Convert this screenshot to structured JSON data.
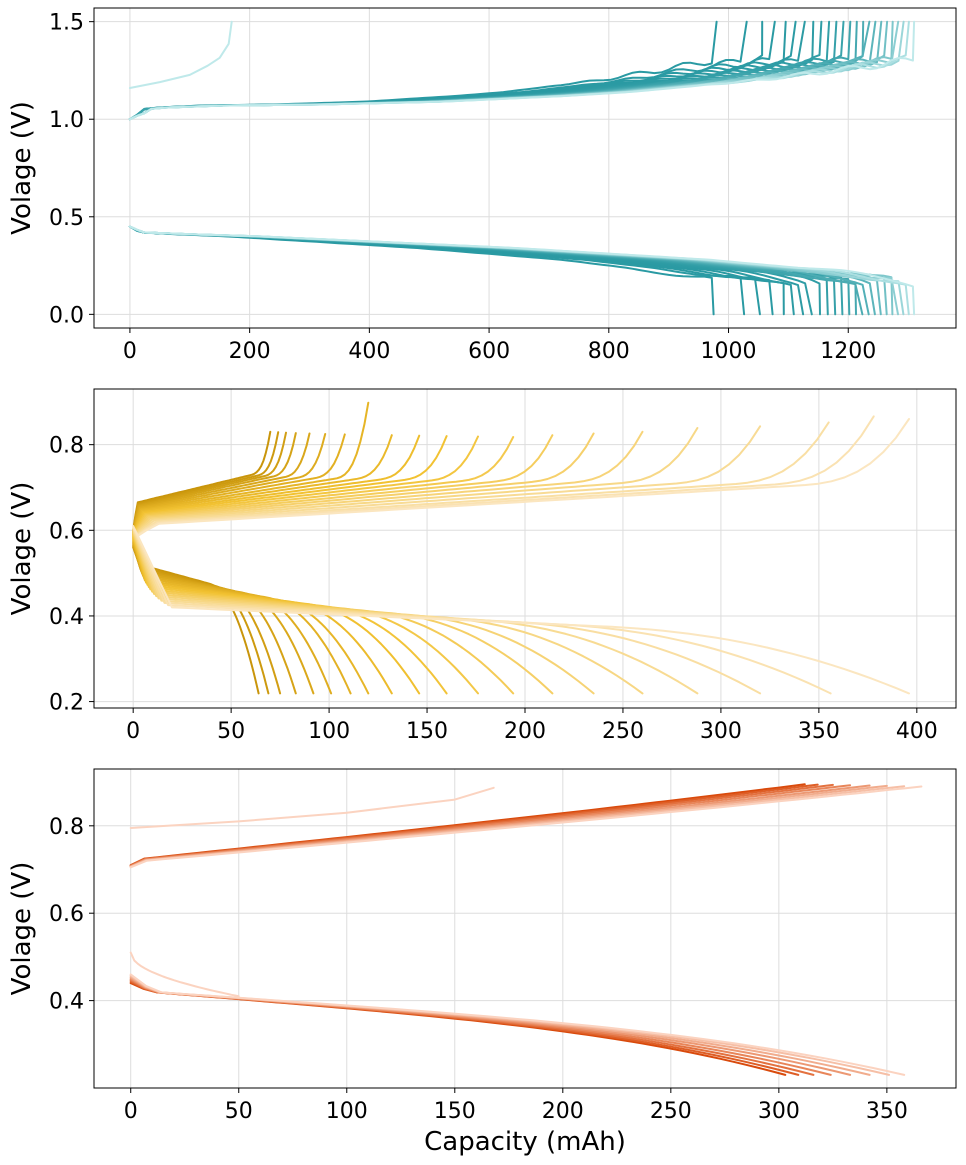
{
  "chart_data": [
    {
      "type": "line",
      "xlabel": "",
      "ylabel": "Volage (V)",
      "xlim": [
        -60,
        1380
      ],
      "ylim": [
        -0.07,
        1.57
      ],
      "x_ticks": [
        0,
        200,
        400,
        600,
        800,
        1000,
        1200
      ],
      "y_ticks": [
        0.0,
        0.5,
        1.0,
        1.5
      ],
      "y_tick_labels": [
        "0.0",
        "0.5",
        "1.0",
        "1.5"
      ],
      "grid": true,
      "colors": {
        "dark": "#2a9aa3",
        "light": "#bfe9ea"
      },
      "series": [
        {
          "role": "charge",
          "x": [
            0,
            20,
            60,
            150,
            300,
            500,
            700,
            800,
            900,
            1000,
            1100,
            1200,
            1250,
            1290,
            1310,
            1315
          ],
          "y": [
            1.02,
            1.05,
            1.06,
            1.07,
            1.075,
            1.09,
            1.12,
            1.14,
            1.17,
            1.2,
            1.24,
            1.28,
            1.31,
            1.36,
            1.45,
            1.5
          ]
        },
        {
          "role": "discharge",
          "x": [
            0,
            20,
            100,
            200,
            400,
            600,
            800,
            900,
            1000,
            1100,
            1200,
            1250,
            1280,
            1300,
            1310
          ],
          "y": [
            0.45,
            0.42,
            0.41,
            0.4,
            0.37,
            0.34,
            0.3,
            0.28,
            0.25,
            0.22,
            0.18,
            0.14,
            0.1,
            0.04,
            0.0
          ]
        },
        {
          "role": "charge-first-cycle",
          "x": [
            0,
            50,
            100,
            130,
            150,
            165,
            170
          ],
          "y": [
            1.16,
            1.19,
            1.23,
            1.27,
            1.32,
            1.38,
            1.5
          ]
        }
      ]
    },
    {
      "type": "line",
      "xlabel": "",
      "ylabel": "Volage (V)",
      "xlim": [
        -20,
        420
      ],
      "ylim": [
        0.185,
        0.93
      ],
      "x_ticks": [
        0,
        50,
        100,
        150,
        200,
        250,
        300,
        350,
        400
      ],
      "y_ticks": [
        0.2,
        0.4,
        0.6,
        0.8
      ],
      "y_tick_labels": [
        "0.2",
        "0.4",
        "0.6",
        "0.8"
      ],
      "grid": true,
      "colors": {
        "dark": "#c9950b",
        "mid": "#f2c232",
        "light": "#fbe6c0"
      },
      "charge_end_capacities": [
        70,
        74,
        78,
        83,
        90,
        98,
        108,
        120,
        132,
        146,
        160,
        176,
        194,
        214,
        235,
        260,
        288,
        320,
        355,
        378,
        396
      ],
      "charge_end_voltages": [
        0.83,
        0.83,
        0.83,
        0.83,
        0.83,
        0.83,
        0.83,
        0.905,
        0.83,
        0.83,
        0.83,
        0.83,
        0.83,
        0.835,
        0.84,
        0.845,
        0.855,
        0.86,
        0.87,
        0.885,
        0.88
      ],
      "discharge_end_capacities": [
        64,
        69,
        75,
        83,
        92,
        101,
        111,
        120,
        132,
        146,
        160,
        176,
        194,
        214,
        235,
        260,
        288,
        320,
        356,
        396
      ],
      "discharge_end_voltage": 0.215
    },
    {
      "type": "line",
      "xlabel": "Capacity (mAh)",
      "ylabel": "Volage (V)",
      "xlim": [
        -17,
        382
      ],
      "ylim": [
        0.2,
        0.93
      ],
      "x_ticks": [
        0,
        50,
        100,
        150,
        200,
        250,
        300,
        350
      ],
      "y_ticks": [
        0.4,
        0.6,
        0.8
      ],
      "y_tick_labels": [
        "0.4",
        "0.6",
        "0.8"
      ],
      "grid": true,
      "colors": {
        "dark": "#d94a0c",
        "light": "#fbd3c0"
      },
      "charge_end_capacities": [
        312,
        318,
        325,
        333,
        342,
        350,
        358,
        366
      ],
      "discharge_end_capacities": [
        303,
        309,
        316,
        324,
        333,
        342,
        351,
        358
      ],
      "first_cycle_charge": {
        "x": [
          0,
          50,
          100,
          150,
          168
        ],
        "y": [
          0.795,
          0.81,
          0.83,
          0.86,
          0.887
        ]
      }
    }
  ]
}
